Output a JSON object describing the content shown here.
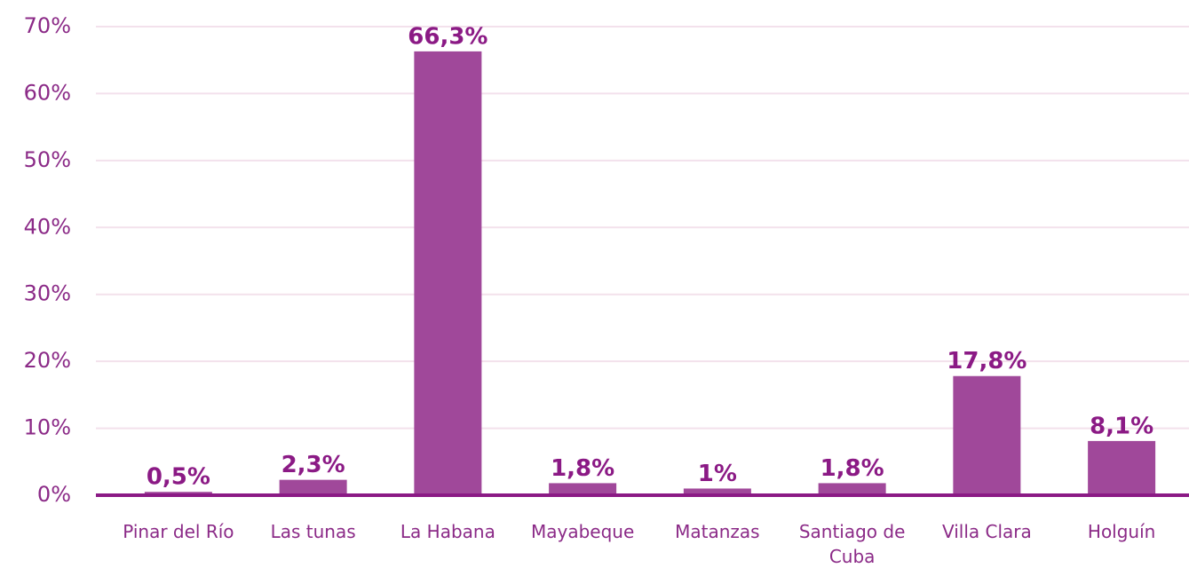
{
  "chart_data": {
    "type": "bar",
    "categories": [
      "Pinar del Río",
      "Las tunas",
      "La Habana",
      "Mayabeque",
      "Matanzas",
      "Santiago de Cuba",
      "Villa Clara",
      "Holguín"
    ],
    "values": [
      0.5,
      2.3,
      66.3,
      1.8,
      1,
      1.8,
      17.8,
      8.1
    ],
    "value_labels": [
      "0,5%",
      "2,3%",
      "66,3%",
      "1,8%",
      "1%",
      "1,8%",
      "17,8%",
      "8,1%"
    ],
    "color": "#a0489a",
    "ylim": [
      0,
      70
    ],
    "yticks": [
      {
        "value": 0,
        "label": "0%"
      },
      {
        "value": 10,
        "label": "10%"
      },
      {
        "value": 20,
        "label": "20%"
      },
      {
        "value": 30,
        "label": "30%"
      },
      {
        "value": 40,
        "label": "40%"
      },
      {
        "value": 50,
        "label": "50%"
      },
      {
        "value": 60,
        "label": "60%"
      },
      {
        "value": 70,
        "label": "70%"
      }
    ],
    "grid": true
  }
}
